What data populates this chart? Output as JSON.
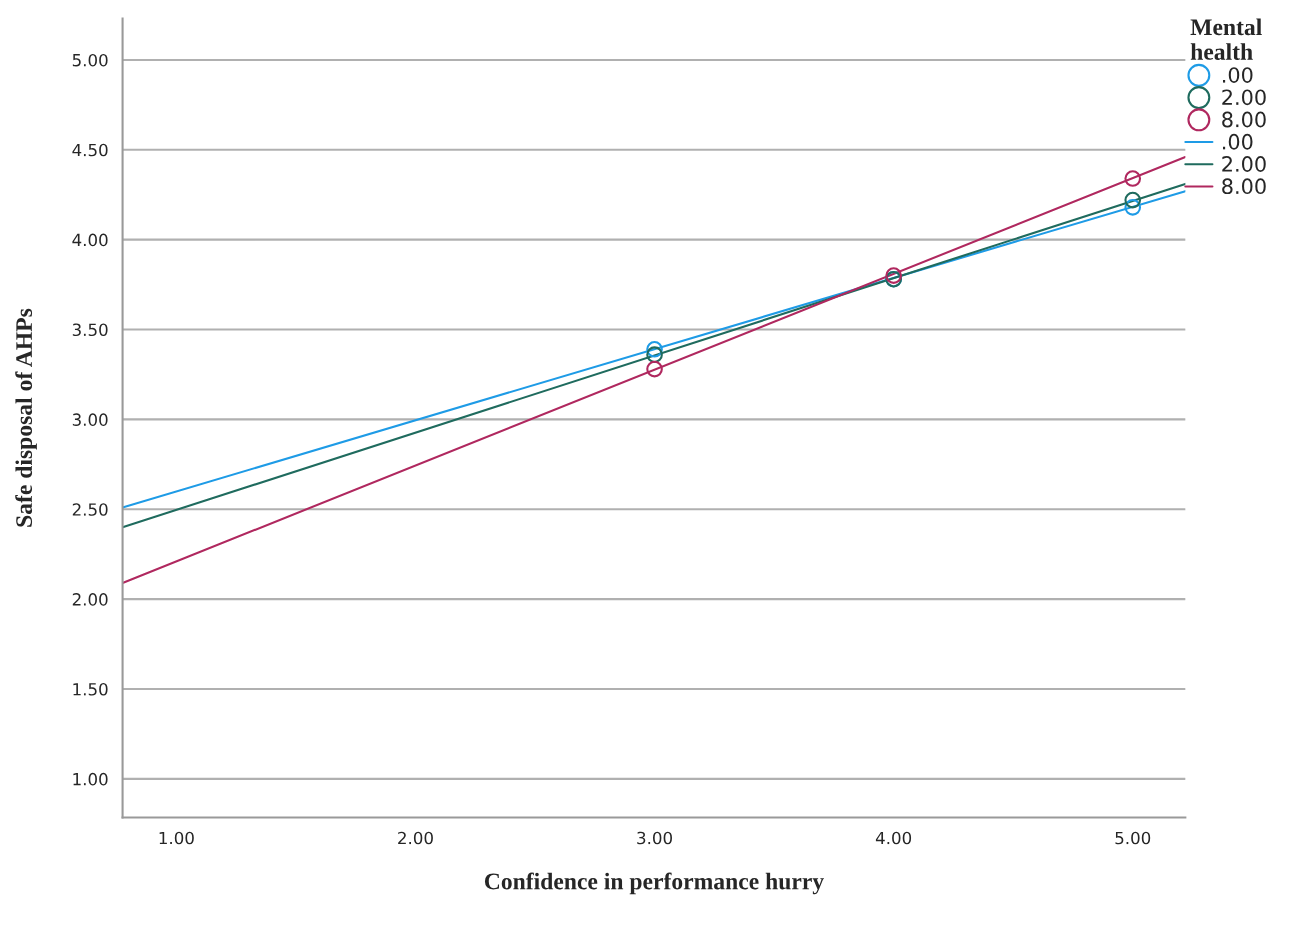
{
  "chart_data": {
    "type": "scatter",
    "xlabel": "Confidence in performance hurry",
    "ylabel": "Safe disposal of AHPs",
    "legend_title": "Mental health",
    "xlim": [
      0.775,
      5.22
    ],
    "ylim": [
      0.785,
      5.23
    ],
    "xticks": [
      {
        "value": 1,
        "label": "1.00"
      },
      {
        "value": 2,
        "label": "2.00"
      },
      {
        "value": 3,
        "label": "3.00"
      },
      {
        "value": 4,
        "label": "4.00"
      },
      {
        "value": 5,
        "label": "5.00"
      }
    ],
    "yticks": [
      {
        "value": 1,
        "label": "1.00"
      },
      {
        "value": 1.5,
        "label": "1.50"
      },
      {
        "value": 2,
        "label": "2.00"
      },
      {
        "value": 2.5,
        "label": "2.50"
      },
      {
        "value": 3,
        "label": "3.00"
      },
      {
        "value": 3.5,
        "label": "3.50"
      },
      {
        "value": 4,
        "label": "4.00"
      },
      {
        "value": 4.5,
        "label": "4.50"
      },
      {
        "value": 5,
        "label": "5.00"
      }
    ],
    "grid": "y",
    "legend": "top right",
    "series": [
      {
        "name": ".00",
        "marker": "circle",
        "color": "#1e9be6",
        "x": [
          3,
          4,
          5
        ],
        "values": [
          3.39,
          3.78,
          4.18
        ]
      },
      {
        "name": "2.00",
        "marker": "circle",
        "color": "#1f6b5e",
        "x": [
          3,
          4,
          5
        ],
        "values": [
          3.36,
          3.78,
          4.22
        ]
      },
      {
        "name": "8.00",
        "marker": "circle",
        "color": "#b0285f",
        "x": [
          3,
          4,
          5
        ],
        "values": [
          3.28,
          3.8,
          4.34
        ]
      },
      {
        "name": ".00",
        "type": "line",
        "color": "#1e9be6",
        "x": [
          0.775,
          5.22
        ],
        "values": [
          2.51,
          4.27
        ]
      },
      {
        "name": "2.00",
        "type": "line",
        "color": "#1f6b5e",
        "x": [
          0.775,
          5.22
        ],
        "values": [
          2.4,
          4.31
        ]
      },
      {
        "name": "8.00",
        "type": "line",
        "color": "#b0285f",
        "x": [
          0.775,
          5.22
        ],
        "values": [
          2.09,
          4.46
        ]
      }
    ]
  }
}
